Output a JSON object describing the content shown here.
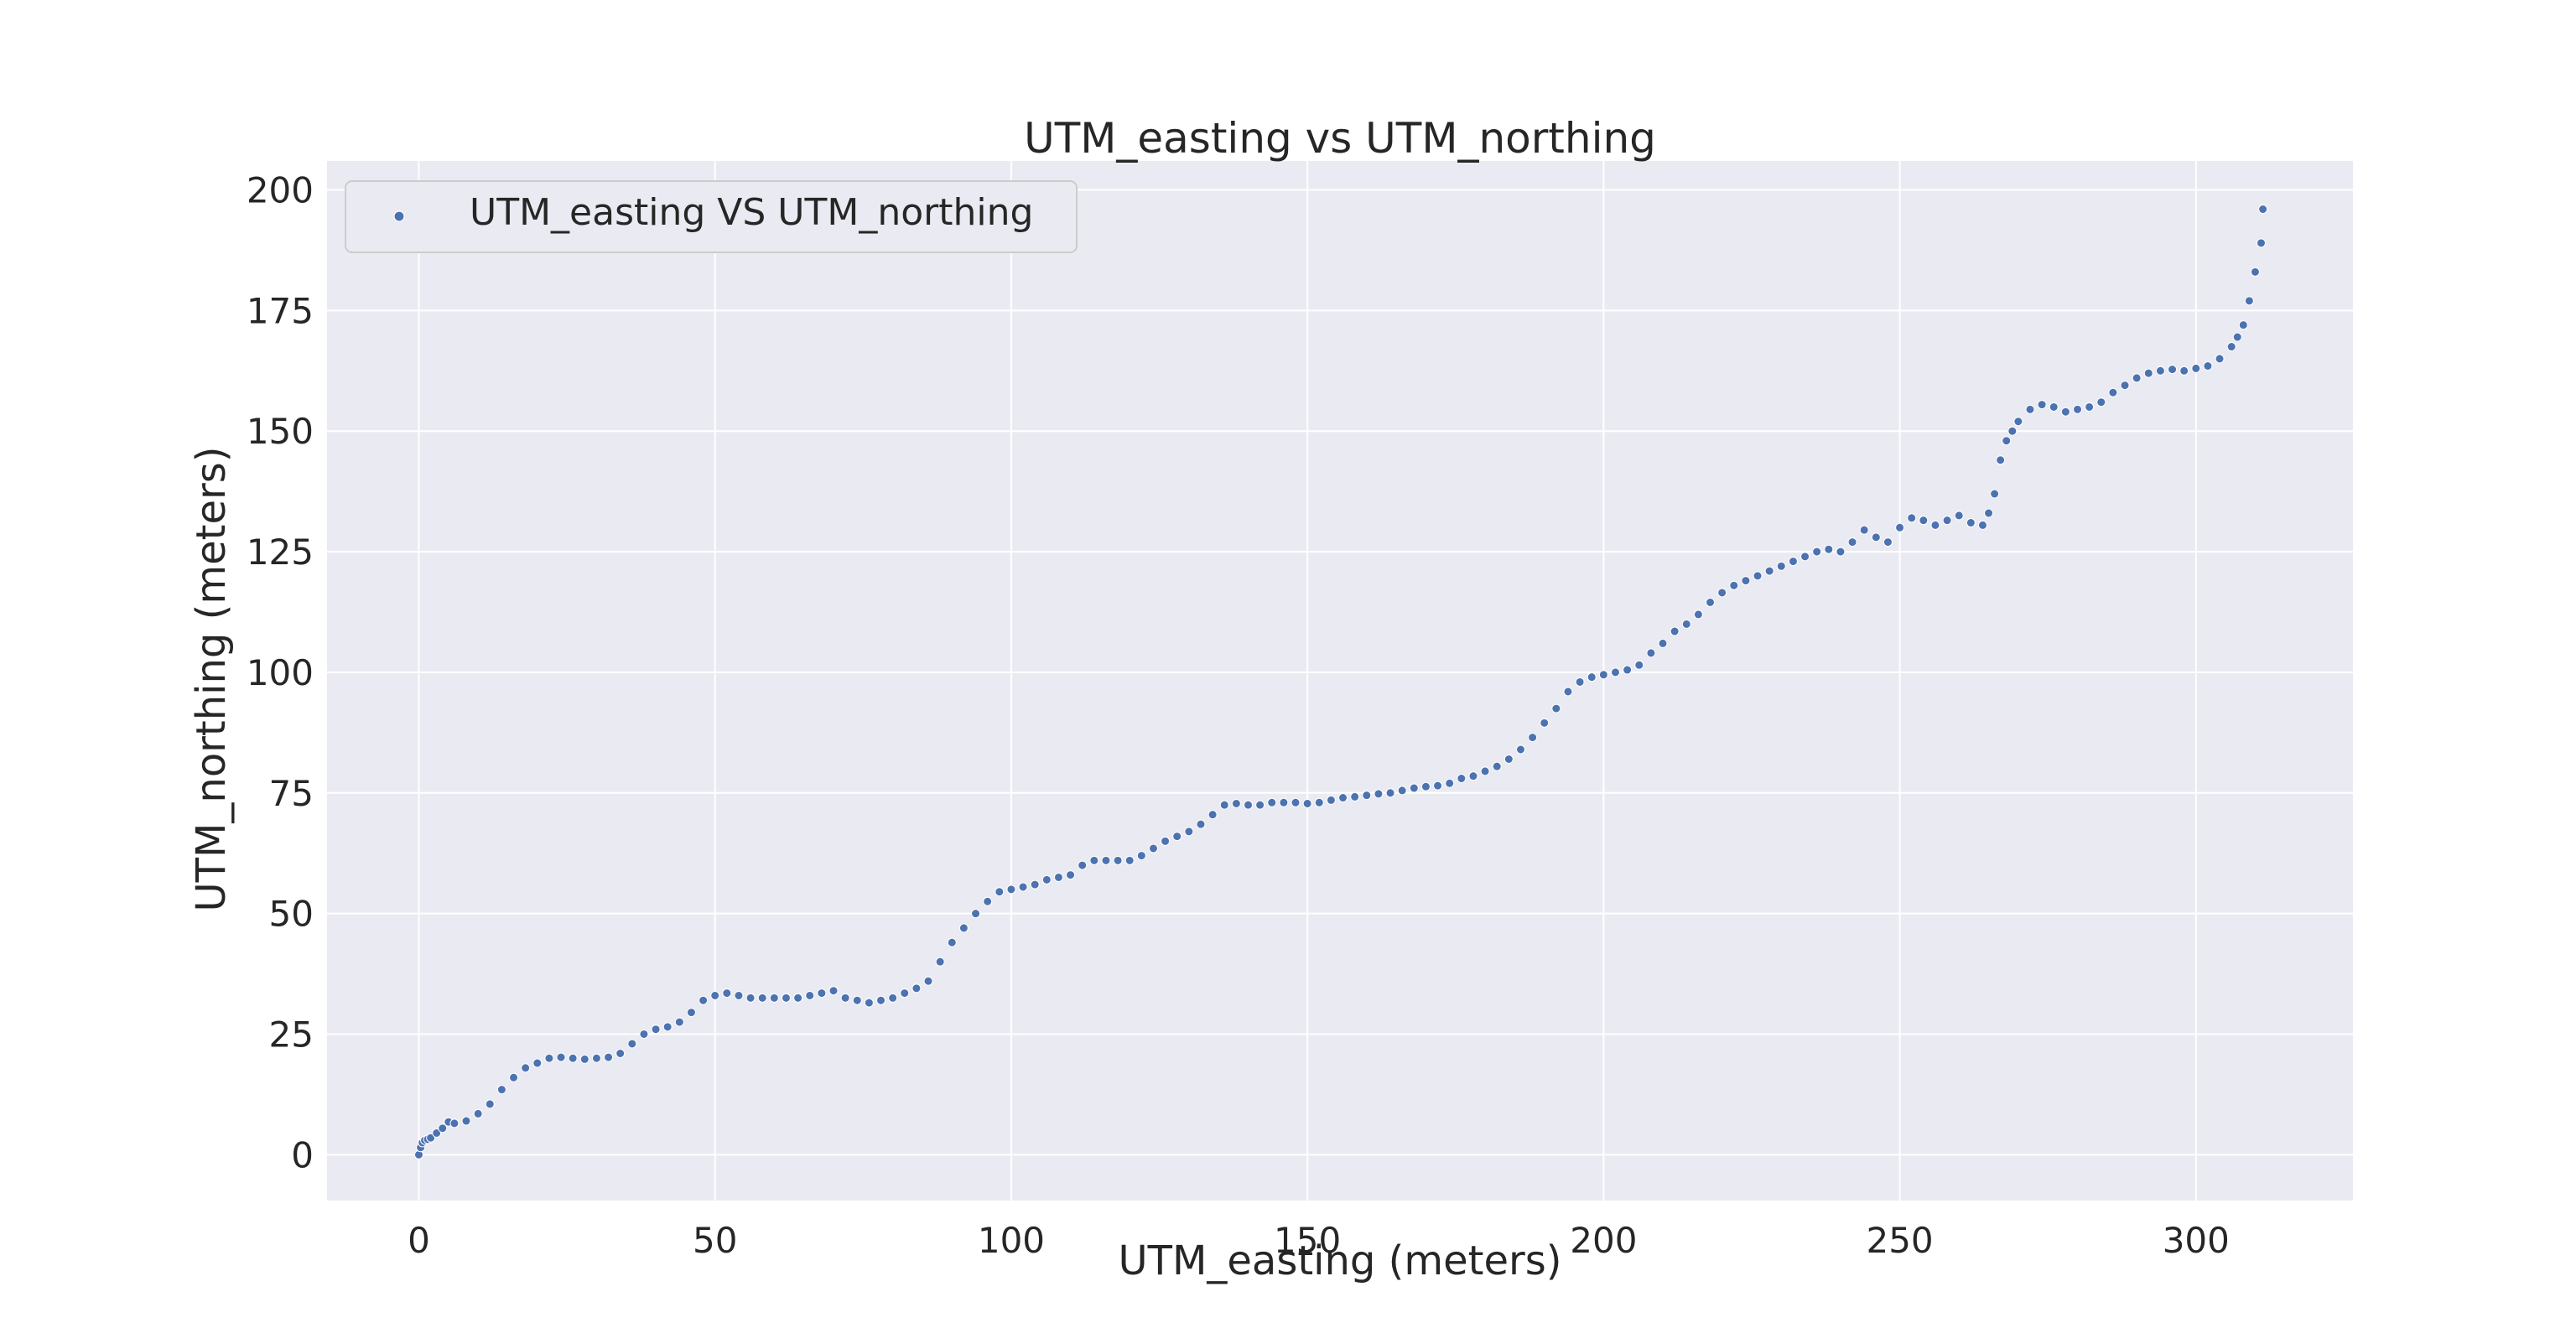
{
  "chart_data": {
    "type": "scatter",
    "title": "UTM_easting vs UTM_northing",
    "xlabel": "UTM_easting (meters)",
    "ylabel": "UTM_northing (meters)",
    "xlim": [
      -15.5,
      326.5
    ],
    "ylim": [
      -9.5,
      206
    ],
    "xticks": [
      0,
      50,
      100,
      150,
      200,
      250,
      300
    ],
    "yticks": [
      0,
      25,
      50,
      75,
      100,
      125,
      150,
      175,
      200
    ],
    "grid": true,
    "legend_position": "upper-left",
    "colors": {
      "background": "#eaeaf2",
      "grid": "#ffffff",
      "marker": "#4c72b0",
      "marker_edge": "#ffffff"
    },
    "series": [
      {
        "name": "UTM_easting VS UTM_northing",
        "x": [
          0,
          0.3,
          0.6,
          1,
          1.5,
          2,
          3,
          4,
          5,
          6,
          8,
          10,
          12,
          14,
          16,
          18,
          20,
          22,
          24,
          26,
          28,
          30,
          32,
          34,
          36,
          38,
          40,
          42,
          44,
          46,
          48,
          50,
          52,
          54,
          56,
          58,
          60,
          62,
          64,
          66,
          68,
          70,
          72,
          74,
          76,
          78,
          80,
          82,
          84,
          86,
          88,
          90,
          92,
          94,
          96,
          98,
          100,
          102,
          104,
          106,
          108,
          110,
          112,
          114,
          116,
          118,
          120,
          122,
          124,
          126,
          128,
          130,
          132,
          134,
          136,
          138,
          140,
          142,
          144,
          146,
          148,
          150,
          152,
          154,
          156,
          158,
          160,
          162,
          164,
          166,
          168,
          170,
          172,
          174,
          176,
          178,
          180,
          182,
          184,
          186,
          188,
          190,
          192,
          194,
          196,
          198,
          200,
          202,
          204,
          206,
          208,
          210,
          212,
          214,
          216,
          218,
          220,
          222,
          224,
          226,
          228,
          230,
          232,
          234,
          236,
          238,
          240,
          242,
          244,
          246,
          248,
          250,
          252,
          254,
          256,
          258,
          260,
          262,
          264,
          265,
          266,
          267,
          268,
          269,
          270,
          272,
          274,
          276,
          278,
          280,
          282,
          284,
          286,
          288,
          290,
          292,
          294,
          296,
          298,
          300,
          302,
          304,
          306,
          307,
          308,
          309,
          310,
          311,
          311.3
        ],
        "y": [
          0,
          1.5,
          2.5,
          3,
          3.2,
          3.5,
          4.5,
          5.5,
          6.8,
          6.5,
          7,
          8.5,
          10.5,
          13.5,
          16,
          18,
          19,
          20,
          20.2,
          20,
          19.8,
          20,
          20.2,
          21,
          23,
          25,
          26,
          26.5,
          27.5,
          29.5,
          32,
          33,
          33.5,
          33,
          32.5,
          32.5,
          32.5,
          32.5,
          32.5,
          33,
          33.5,
          34,
          32.5,
          32,
          31.5,
          32,
          32.5,
          33.5,
          34.5,
          36,
          40,
          44,
          47,
          50,
          52.5,
          54.5,
          55,
          55.5,
          56,
          57,
          57.5,
          58,
          60,
          61,
          61,
          61,
          61,
          62,
          63.5,
          65,
          66,
          67,
          68.5,
          70.5,
          72.5,
          72.8,
          72.5,
          72.5,
          73,
          73,
          73,
          72.8,
          73,
          73.5,
          74,
          74.2,
          74.5,
          74.8,
          75,
          75.5,
          76,
          76.3,
          76.5,
          77,
          78,
          78.5,
          79.5,
          80.5,
          82,
          84,
          86.5,
          89.5,
          92.5,
          96,
          98,
          99,
          99.5,
          100,
          100.5,
          101.5,
          104,
          106,
          108.5,
          110,
          112,
          114.5,
          116.5,
          118,
          119,
          120,
          121,
          122,
          123,
          124,
          125,
          125.5,
          125,
          127,
          129.5,
          128,
          127,
          130,
          132,
          131.5,
          130.5,
          131.5,
          132.5,
          131,
          130.5,
          133,
          137,
          144,
          148,
          150,
          152,
          154.5,
          155.5,
          155,
          154,
          154.5,
          155,
          156,
          158,
          159.5,
          161,
          162,
          162.5,
          162.8,
          162.5,
          163,
          163.5,
          165,
          167.5,
          169.5,
          172,
          177,
          183,
          189,
          196
        ]
      }
    ]
  }
}
